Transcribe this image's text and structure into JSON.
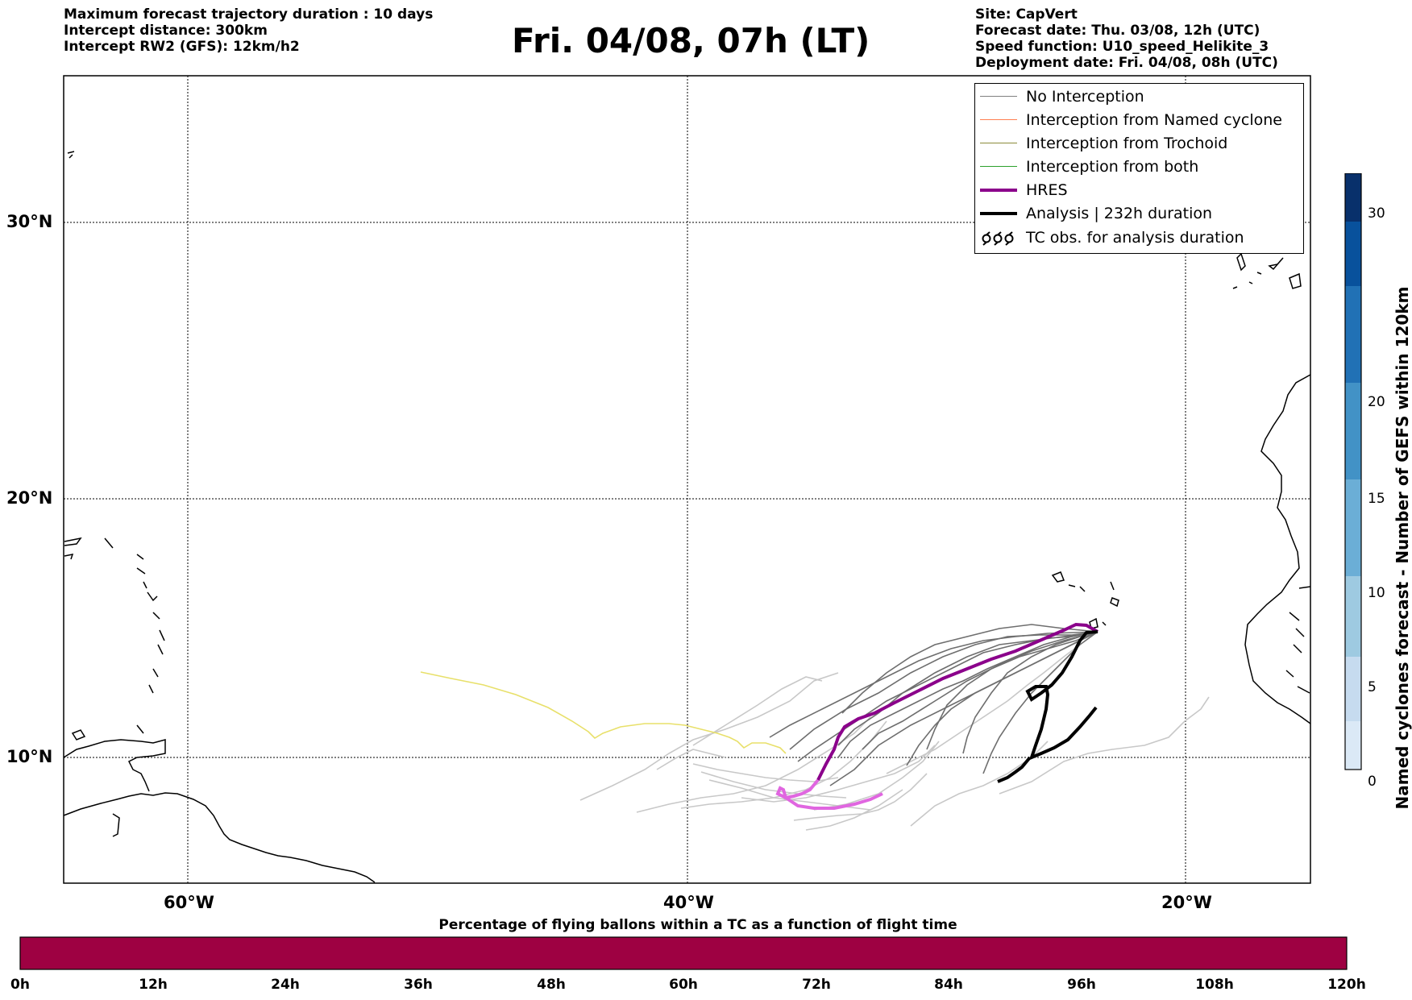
{
  "header_left": [
    "Maximum forecast trajectory duration : 10 days",
    "Intercept distance: 300km",
    "Intercept RW2 (GFS):  12km/h2"
  ],
  "title": "Fri. 04/08, 07h (LT)",
  "header_right": [
    "Site: CapVert",
    "Forecast date: Thu. 03/08, 12h (UTC)",
    "Speed function: U10_speed_Helikite_3",
    "Deployment date: Fri. 04/08, 08h (UTC)"
  ],
  "lat_ticks": [
    "30°N",
    "20°N",
    "10°N"
  ],
  "lon_ticks": [
    "60°W",
    "40°W",
    "20°W"
  ],
  "legend": [
    {
      "label": "No Interception",
      "color": "#808080"
    },
    {
      "label": "Interception from Named cyclone",
      "color": "#ff7f50"
    },
    {
      "label": "Interception from Trochoid",
      "color": "#8b8b3a"
    },
    {
      "label": "Interception from both",
      "color": "#2ca02c"
    },
    {
      "label": "HRES",
      "color": "#8b008b"
    },
    {
      "label": "Analysis | 232h duration",
      "color": "#000000"
    },
    {
      "label": "TC obs. for analysis duration",
      "color": "#000000",
      "icon": "tc-symbol-icon"
    }
  ],
  "colorbar_right": {
    "title": "Named cyclones forecast - Number of GEFS within 120km",
    "ticks": [
      "0",
      "5",
      "10",
      "15",
      "20",
      "30"
    ],
    "colors": [
      "#dbe9f6",
      "#c6dbef",
      "#9ecae1",
      "#6baed6",
      "#4292c6",
      "#2171b5",
      "#08519c",
      "#08306b"
    ]
  },
  "colorbar_bottom": {
    "title": "Percentage of flying ballons within a TC as a function of flight time",
    "ticks": [
      "0h",
      "12h",
      "24h",
      "36h",
      "48h",
      "60h",
      "72h",
      "84h",
      "96h",
      "108h",
      "120h"
    ],
    "color": "#9e0142"
  }
}
